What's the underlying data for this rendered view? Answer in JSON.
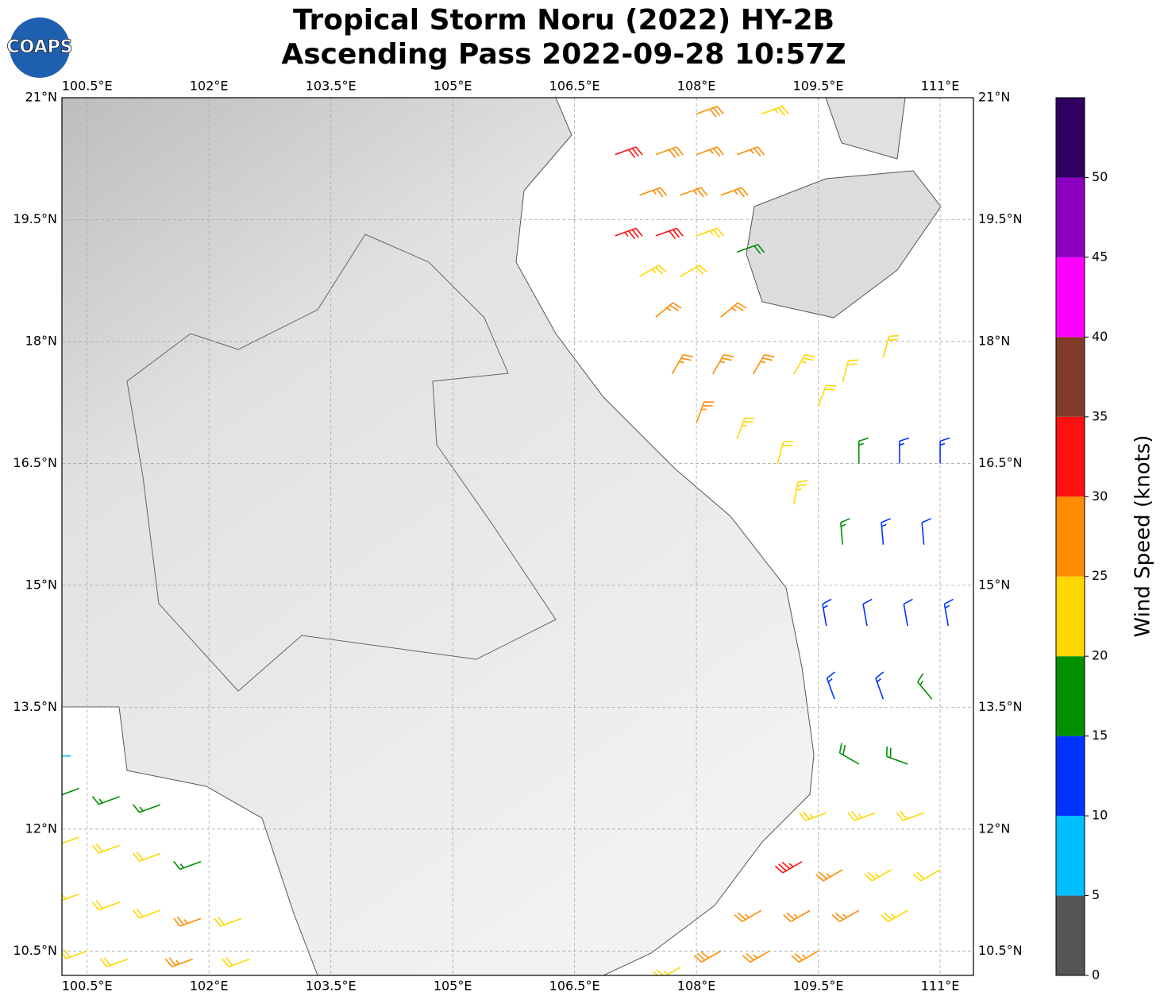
{
  "map": {
    "title": [
      "Tropical Storm Noru (2022) HY-2B",
      "Ascending Pass 2022-09-28 10:57Z"
    ],
    "logo": "COAPS",
    "xlim": [
      100.19,
      111.41
    ],
    "ylim": [
      10.2,
      21.0
    ],
    "xticks": [
      {
        "value": 100.5,
        "label": "100.5°E"
      },
      {
        "value": 102,
        "label": "102°E"
      },
      {
        "value": 103.5,
        "label": "103.5°E"
      },
      {
        "value": 105,
        "label": "105°E"
      },
      {
        "value": 106.5,
        "label": "106.5°E"
      },
      {
        "value": 108,
        "label": "108°E"
      },
      {
        "value": 109.5,
        "label": "109.5°E"
      },
      {
        "value": 111,
        "label": "111°E"
      }
    ],
    "yticks": [
      {
        "value": 10.5,
        "label": "10.5°N"
      },
      {
        "value": 12,
        "label": "12°N"
      },
      {
        "value": 13.5,
        "label": "13.5°N"
      },
      {
        "value": 15,
        "label": "15°N"
      },
      {
        "value": 16.5,
        "label": "16.5°N"
      },
      {
        "value": 18,
        "label": "18°N"
      },
      {
        "value": 19.5,
        "label": "19.5°N"
      },
      {
        "value": 21,
        "label": "21°N"
      }
    ],
    "grid": true,
    "colorbar": {
      "label": "Wind Speed (knots)",
      "clim": [
        0,
        55
      ],
      "ticks": [
        0,
        5,
        10,
        15,
        20,
        25,
        30,
        35,
        40,
        45,
        50
      ],
      "colors": [
        "#555555",
        "#00bfff",
        "#0033ff",
        "#009000",
        "#ffd700",
        "#ff8c00",
        "#ff1010",
        "#803c28",
        "#ff00ff",
        "#8b00c0",
        "#2e0060"
      ]
    },
    "barbs": [
      {
        "lon": 107.0,
        "lat": 20.3,
        "speed": 32,
        "dir": 70
      },
      {
        "lon": 107.5,
        "lat": 20.3,
        "speed": 28,
        "dir": 70
      },
      {
        "lon": 108.0,
        "lat": 20.3,
        "speed": 27,
        "dir": 70
      },
      {
        "lon": 108.5,
        "lat": 20.3,
        "speed": 26,
        "dir": 70
      },
      {
        "lon": 107.3,
        "lat": 19.8,
        "speed": 27,
        "dir": 70
      },
      {
        "lon": 107.8,
        "lat": 19.8,
        "speed": 27,
        "dir": 70
      },
      {
        "lon": 108.3,
        "lat": 19.8,
        "speed": 25,
        "dir": 70
      },
      {
        "lon": 107.0,
        "lat": 19.3,
        "speed": 33,
        "dir": 70
      },
      {
        "lon": 107.5,
        "lat": 19.3,
        "speed": 31,
        "dir": 70
      },
      {
        "lon": 108.0,
        "lat": 19.3,
        "speed": 23,
        "dir": 70
      },
      {
        "lon": 108.5,
        "lat": 19.1,
        "speed": 18,
        "dir": 70
      },
      {
        "lon": 107.3,
        "lat": 18.8,
        "speed": 24,
        "dir": 60
      },
      {
        "lon": 107.8,
        "lat": 18.8,
        "speed": 22,
        "dir": 60
      },
      {
        "lon": 108.3,
        "lat": 18.3,
        "speed": 25,
        "dir": 50
      },
      {
        "lon": 107.5,
        "lat": 18.3,
        "speed": 27,
        "dir": 50
      },
      {
        "lon": 108.0,
        "lat": 20.8,
        "speed": 28,
        "dir": 70
      },
      {
        "lon": 108.8,
        "lat": 20.8,
        "speed": 24,
        "dir": 70
      },
      {
        "lon": 107.7,
        "lat": 17.6,
        "speed": 27,
        "dir": 30
      },
      {
        "lon": 108.2,
        "lat": 17.6,
        "speed": 26,
        "dir": 30
      },
      {
        "lon": 108.7,
        "lat": 17.6,
        "speed": 25,
        "dir": 30
      },
      {
        "lon": 109.2,
        "lat": 17.6,
        "speed": 23,
        "dir": 30
      },
      {
        "lon": 108.0,
        "lat": 17.0,
        "speed": 27,
        "dir": 20
      },
      {
        "lon": 108.5,
        "lat": 16.8,
        "speed": 23,
        "dir": 20
      },
      {
        "lon": 109.0,
        "lat": 16.5,
        "speed": 22,
        "dir": 15
      },
      {
        "lon": 109.5,
        "lat": 17.2,
        "speed": 22,
        "dir": 20
      },
      {
        "lon": 109.2,
        "lat": 16.0,
        "speed": 23,
        "dir": 10
      },
      {
        "lon": 109.8,
        "lat": 17.5,
        "speed": 21,
        "dir": 15
      },
      {
        "lon": 110.3,
        "lat": 17.8,
        "speed": 22,
        "dir": 15
      },
      {
        "lon": 110.0,
        "lat": 16.5,
        "speed": 17,
        "dir": 0
      },
      {
        "lon": 110.5,
        "lat": 16.5,
        "speed": 13,
        "dir": 0
      },
      {
        "lon": 111.0,
        "lat": 16.5,
        "speed": 13,
        "dir": 0
      },
      {
        "lon": 109.8,
        "lat": 15.5,
        "speed": 16,
        "dir": 355
      },
      {
        "lon": 110.3,
        "lat": 15.5,
        "speed": 13,
        "dir": 355
      },
      {
        "lon": 110.8,
        "lat": 15.5,
        "speed": 12,
        "dir": 355
      },
      {
        "lon": 109.6,
        "lat": 14.5,
        "speed": 14,
        "dir": 350
      },
      {
        "lon": 110.1,
        "lat": 14.5,
        "speed": 12,
        "dir": 350
      },
      {
        "lon": 110.6,
        "lat": 14.5,
        "speed": 12,
        "dir": 350
      },
      {
        "lon": 111.1,
        "lat": 14.5,
        "speed": 13,
        "dir": 350
      },
      {
        "lon": 109.7,
        "lat": 13.6,
        "speed": 14,
        "dir": 340
      },
      {
        "lon": 110.3,
        "lat": 13.6,
        "speed": 13,
        "dir": 340
      },
      {
        "lon": 110.9,
        "lat": 13.6,
        "speed": 16,
        "dir": 320
      },
      {
        "lon": 110.0,
        "lat": 12.8,
        "speed": 18,
        "dir": 300
      },
      {
        "lon": 110.6,
        "lat": 12.8,
        "speed": 19,
        "dir": 290
      },
      {
        "lon": 109.6,
        "lat": 12.2,
        "speed": 24,
        "dir": 250
      },
      {
        "lon": 110.2,
        "lat": 12.2,
        "speed": 23,
        "dir": 250
      },
      {
        "lon": 110.8,
        "lat": 12.2,
        "speed": 22,
        "dir": 250
      },
      {
        "lon": 109.3,
        "lat": 11.6,
        "speed": 33,
        "dir": 240
      },
      {
        "lon": 109.8,
        "lat": 11.5,
        "speed": 27,
        "dir": 240
      },
      {
        "lon": 110.4,
        "lat": 11.5,
        "speed": 24,
        "dir": 240
      },
      {
        "lon": 111.0,
        "lat": 11.5,
        "speed": 22,
        "dir": 240
      },
      {
        "lon": 108.8,
        "lat": 11.0,
        "speed": 27,
        "dir": 240
      },
      {
        "lon": 109.4,
        "lat": 11.0,
        "speed": 27,
        "dir": 240
      },
      {
        "lon": 110.0,
        "lat": 11.0,
        "speed": 25,
        "dir": 240
      },
      {
        "lon": 110.6,
        "lat": 11.0,
        "speed": 23,
        "dir": 240
      },
      {
        "lon": 108.3,
        "lat": 10.5,
        "speed": 28,
        "dir": 240
      },
      {
        "lon": 108.9,
        "lat": 10.5,
        "speed": 27,
        "dir": 240
      },
      {
        "lon": 109.5,
        "lat": 10.5,
        "speed": 25,
        "dir": 240
      },
      {
        "lon": 107.8,
        "lat": 10.3,
        "speed": 23,
        "dir": 240
      },
      {
        "lon": 100.4,
        "lat": 12.5,
        "speed": 18,
        "dir": 250
      },
      {
        "lon": 100.9,
        "lat": 12.4,
        "speed": 17,
        "dir": 250
      },
      {
        "lon": 101.4,
        "lat": 12.3,
        "speed": 16,
        "dir": 250
      },
      {
        "lon": 100.4,
        "lat": 11.9,
        "speed": 22,
        "dir": 250
      },
      {
        "lon": 100.9,
        "lat": 11.8,
        "speed": 22,
        "dir": 250
      },
      {
        "lon": 101.4,
        "lat": 11.7,
        "speed": 21,
        "dir": 250
      },
      {
        "lon": 101.9,
        "lat": 11.6,
        "speed": 17,
        "dir": 250
      },
      {
        "lon": 100.4,
        "lat": 11.2,
        "speed": 23,
        "dir": 250
      },
      {
        "lon": 100.9,
        "lat": 11.1,
        "speed": 22,
        "dir": 250
      },
      {
        "lon": 101.4,
        "lat": 11.0,
        "speed": 22,
        "dir": 250
      },
      {
        "lon": 101.9,
        "lat": 10.9,
        "speed": 26,
        "dir": 250
      },
      {
        "lon": 102.4,
        "lat": 10.9,
        "speed": 22,
        "dir": 250
      },
      {
        "lon": 100.5,
        "lat": 10.5,
        "speed": 22,
        "dir": 250
      },
      {
        "lon": 101.0,
        "lat": 10.4,
        "speed": 22,
        "dir": 250
      },
      {
        "lon": 101.8,
        "lat": 10.4,
        "speed": 26,
        "dir": 250
      },
      {
        "lon": 102.5,
        "lat": 10.4,
        "speed": 22,
        "dir": 250
      },
      {
        "lon": 100.3,
        "lat": 12.9,
        "speed": 8,
        "dir": 270
      }
    ]
  }
}
